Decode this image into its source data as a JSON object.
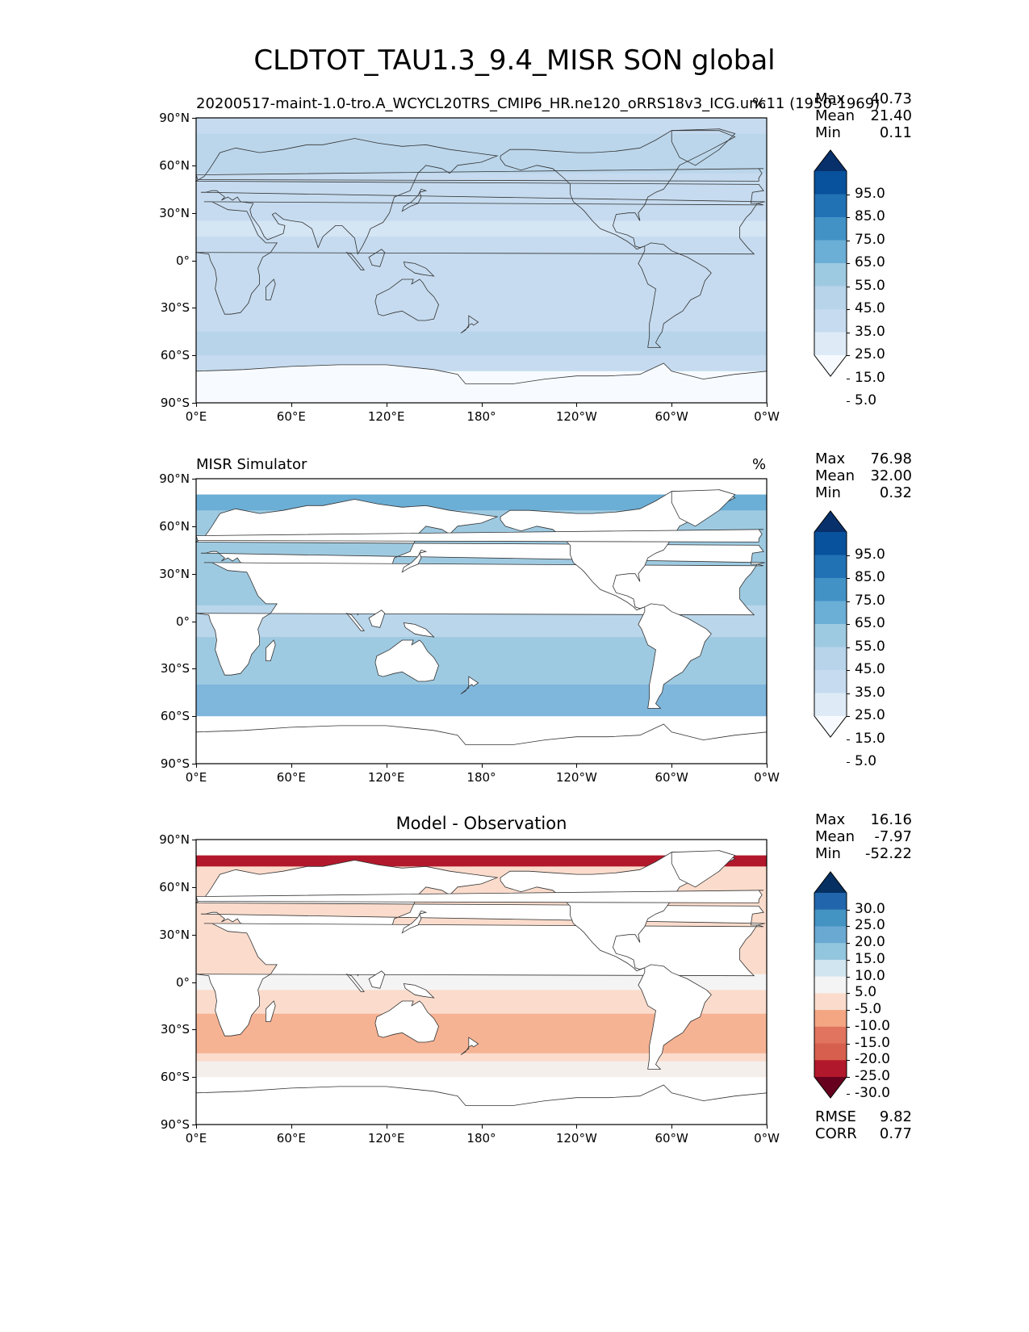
{
  "figure": {
    "title": "CLDTOT_TAU1.3_9.4_MISR SON global"
  },
  "panels": [
    {
      "id": "model",
      "title_left": "20200517-maint-1.0-tro.A_WCYCL20TRS_CMIP6_HR.ne120_oRRS18v3_ICG.unc11 (1950-1969)",
      "title_center": "",
      "units": "%",
      "stats": [
        {
          "label": "Max",
          "value": "40.73"
        },
        {
          "label": "Mean",
          "value": "21.40"
        },
        {
          "label": "Min",
          "value": "0.11"
        }
      ],
      "colorbar": {
        "labels": [
          "95.0",
          "85.0",
          "75.0",
          "65.0",
          "55.0",
          "45.0",
          "35.0",
          "25.0",
          "15.0",
          "5.0"
        ],
        "colors": [
          "#08306b",
          "#08519c",
          "#2171b5",
          "#4292c6",
          "#6baed6",
          "#9ecae1",
          "#b7d4ea",
          "#c6dbef",
          "#deebf7",
          "#f7fbff"
        ]
      }
    },
    {
      "id": "obs",
      "title_left": "MISR Simulator",
      "title_center": "",
      "units": "%",
      "stats": [
        {
          "label": "Max",
          "value": "76.98"
        },
        {
          "label": "Mean",
          "value": "32.00"
        },
        {
          "label": "Min",
          "value": "0.32"
        }
      ],
      "colorbar": {
        "labels": [
          "95.0",
          "85.0",
          "75.0",
          "65.0",
          "55.0",
          "45.0",
          "35.0",
          "25.0",
          "15.0",
          "5.0"
        ],
        "colors": [
          "#08306b",
          "#08519c",
          "#2171b5",
          "#4292c6",
          "#6baed6",
          "#9ecae1",
          "#b7d4ea",
          "#c6dbef",
          "#deebf7",
          "#f7fbff"
        ]
      }
    },
    {
      "id": "diff",
      "title_left": "",
      "title_center": "Model - Observation",
      "units": "",
      "stats": [
        {
          "label": "Max",
          "value": "16.16"
        },
        {
          "label": "Mean",
          "value": "-7.97"
        },
        {
          "label": "Min",
          "value": "-52.22"
        }
      ],
      "extra_stats": [
        {
          "label": "RMSE",
          "value": "9.82"
        },
        {
          "label": "CORR",
          "value": "0.77"
        }
      ],
      "colorbar": {
        "labels": [
          "30.0",
          "25.0",
          "20.0",
          "15.0",
          "10.0",
          "5.0",
          "-5.0",
          "-10.0",
          "-15.0",
          "-20.0",
          "-25.0",
          "-30.0"
        ],
        "colors": [
          "#053061",
          "#2166ac",
          "#4393c3",
          "#6aa9d2",
          "#92c5de",
          "#d1e5f0",
          "#f4f4f4",
          "#fbdccc",
          "#f4a582",
          "#e0745f",
          "#d6604d",
          "#b2182b",
          "#67001f"
        ]
      }
    }
  ],
  "axes": {
    "lat_ticks": [
      "90°N",
      "60°N",
      "30°N",
      "0°",
      "30°S",
      "60°S",
      "90°S"
    ],
    "lon_ticks": [
      "0°E",
      "60°E",
      "120°E",
      "180°",
      "120°W",
      "60°W",
      "0°W"
    ]
  },
  "colors": {
    "land_outline": "#333333",
    "model_field": "#c6dbef",
    "obs_ocean": "#9ecae1",
    "diff_ocean": "#fbdccc",
    "diff_arctic": "#b2182b"
  }
}
